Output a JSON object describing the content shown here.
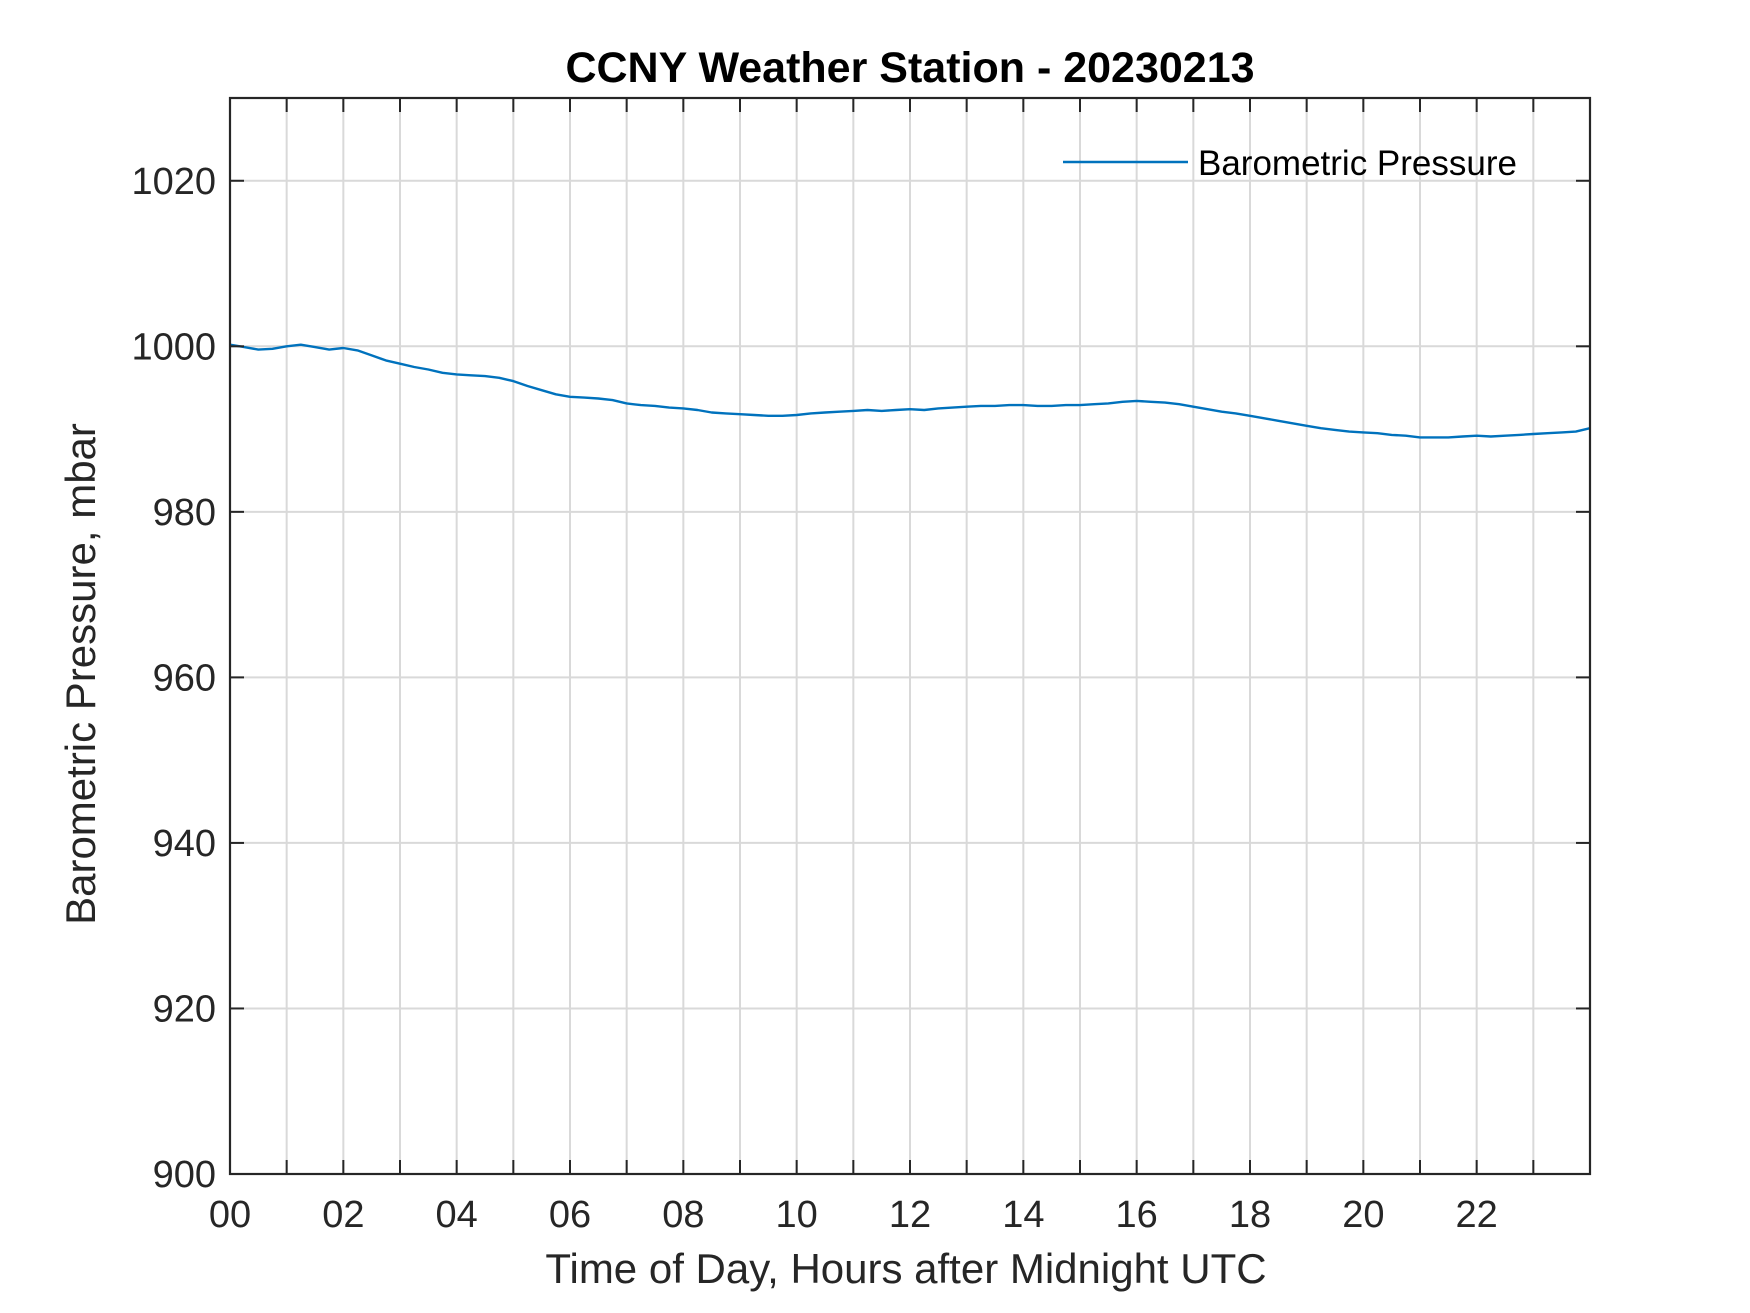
{
  "chart_data": {
    "type": "line",
    "title": "CCNY Weather Station - 20230213",
    "xlabel": "Time of Day, Hours after Midnight UTC",
    "ylabel": "Barometric Pressure, mbar",
    "xlim": [
      0,
      24
    ],
    "ylim": [
      900,
      1030
    ],
    "x_ticks": [
      0,
      2,
      4,
      6,
      8,
      10,
      12,
      14,
      16,
      18,
      20,
      22
    ],
    "x_tick_labels": [
      "00",
      "02",
      "04",
      "06",
      "08",
      "10",
      "12",
      "14",
      "16",
      "18",
      "20",
      "22"
    ],
    "y_ticks": [
      900,
      920,
      940,
      960,
      980,
      1000,
      1020
    ],
    "y_tick_labels": [
      "900",
      "920",
      "940",
      "960",
      "980",
      "1000",
      "1020"
    ],
    "grid": true,
    "legend": {
      "position": "top-right",
      "entries": [
        "Barometric Pressure"
      ]
    },
    "series": [
      {
        "name": "Barometric Pressure",
        "color": "#0072BD",
        "x": [
          0,
          0.25,
          0.5,
          0.75,
          1.0,
          1.25,
          1.5,
          1.75,
          2.0,
          2.25,
          2.5,
          2.75,
          3.0,
          3.25,
          3.5,
          3.75,
          4.0,
          4.25,
          4.5,
          4.75,
          5.0,
          5.25,
          5.5,
          5.75,
          6.0,
          6.25,
          6.5,
          6.75,
          7.0,
          7.25,
          7.5,
          7.75,
          8.0,
          8.25,
          8.5,
          8.75,
          9.0,
          9.25,
          9.5,
          9.75,
          10.0,
          10.25,
          10.5,
          10.75,
          11.0,
          11.25,
          11.5,
          11.75,
          12.0,
          12.25,
          12.5,
          12.75,
          13.0,
          13.25,
          13.5,
          13.75,
          14.0,
          14.25,
          14.5,
          14.75,
          15.0,
          15.25,
          15.5,
          15.75,
          16.0,
          16.25,
          16.5,
          16.75,
          17.0,
          17.25,
          17.5,
          17.75,
          18.0,
          18.25,
          18.5,
          18.75,
          19.0,
          19.25,
          19.5,
          19.75,
          20.0,
          20.25,
          20.5,
          20.75,
          21.0,
          21.25,
          21.5,
          21.75,
          22.0,
          22.25,
          22.5,
          22.75,
          23.0,
          23.25,
          23.5,
          23.75,
          24.0
        ],
        "y": [
          1000.2,
          999.9,
          999.6,
          999.7,
          1000.0,
          1000.2,
          999.9,
          999.6,
          999.8,
          999.5,
          998.9,
          998.3,
          997.9,
          997.5,
          997.2,
          996.8,
          996.6,
          996.5,
          996.4,
          996.2,
          995.8,
          995.2,
          994.7,
          994.2,
          993.9,
          993.8,
          993.7,
          993.5,
          993.1,
          992.9,
          992.8,
          992.6,
          992.5,
          992.3,
          992.0,
          991.9,
          991.8,
          991.7,
          991.6,
          991.6,
          991.7,
          991.9,
          992.0,
          992.1,
          992.2,
          992.3,
          992.2,
          992.3,
          992.4,
          992.3,
          992.5,
          992.6,
          992.7,
          992.8,
          992.8,
          992.9,
          992.9,
          992.8,
          992.8,
          992.9,
          992.9,
          993.0,
          993.1,
          993.3,
          993.4,
          993.3,
          993.2,
          993.0,
          992.7,
          992.4,
          992.1,
          991.9,
          991.6,
          991.3,
          991.0,
          990.7,
          990.4,
          990.1,
          989.9,
          989.7,
          989.6,
          989.5,
          989.3,
          989.2,
          989.0,
          989.0,
          989.0,
          989.1,
          989.2,
          989.1,
          989.2,
          989.3,
          989.4,
          989.5,
          989.6,
          989.7,
          990.1
        ]
      }
    ]
  }
}
